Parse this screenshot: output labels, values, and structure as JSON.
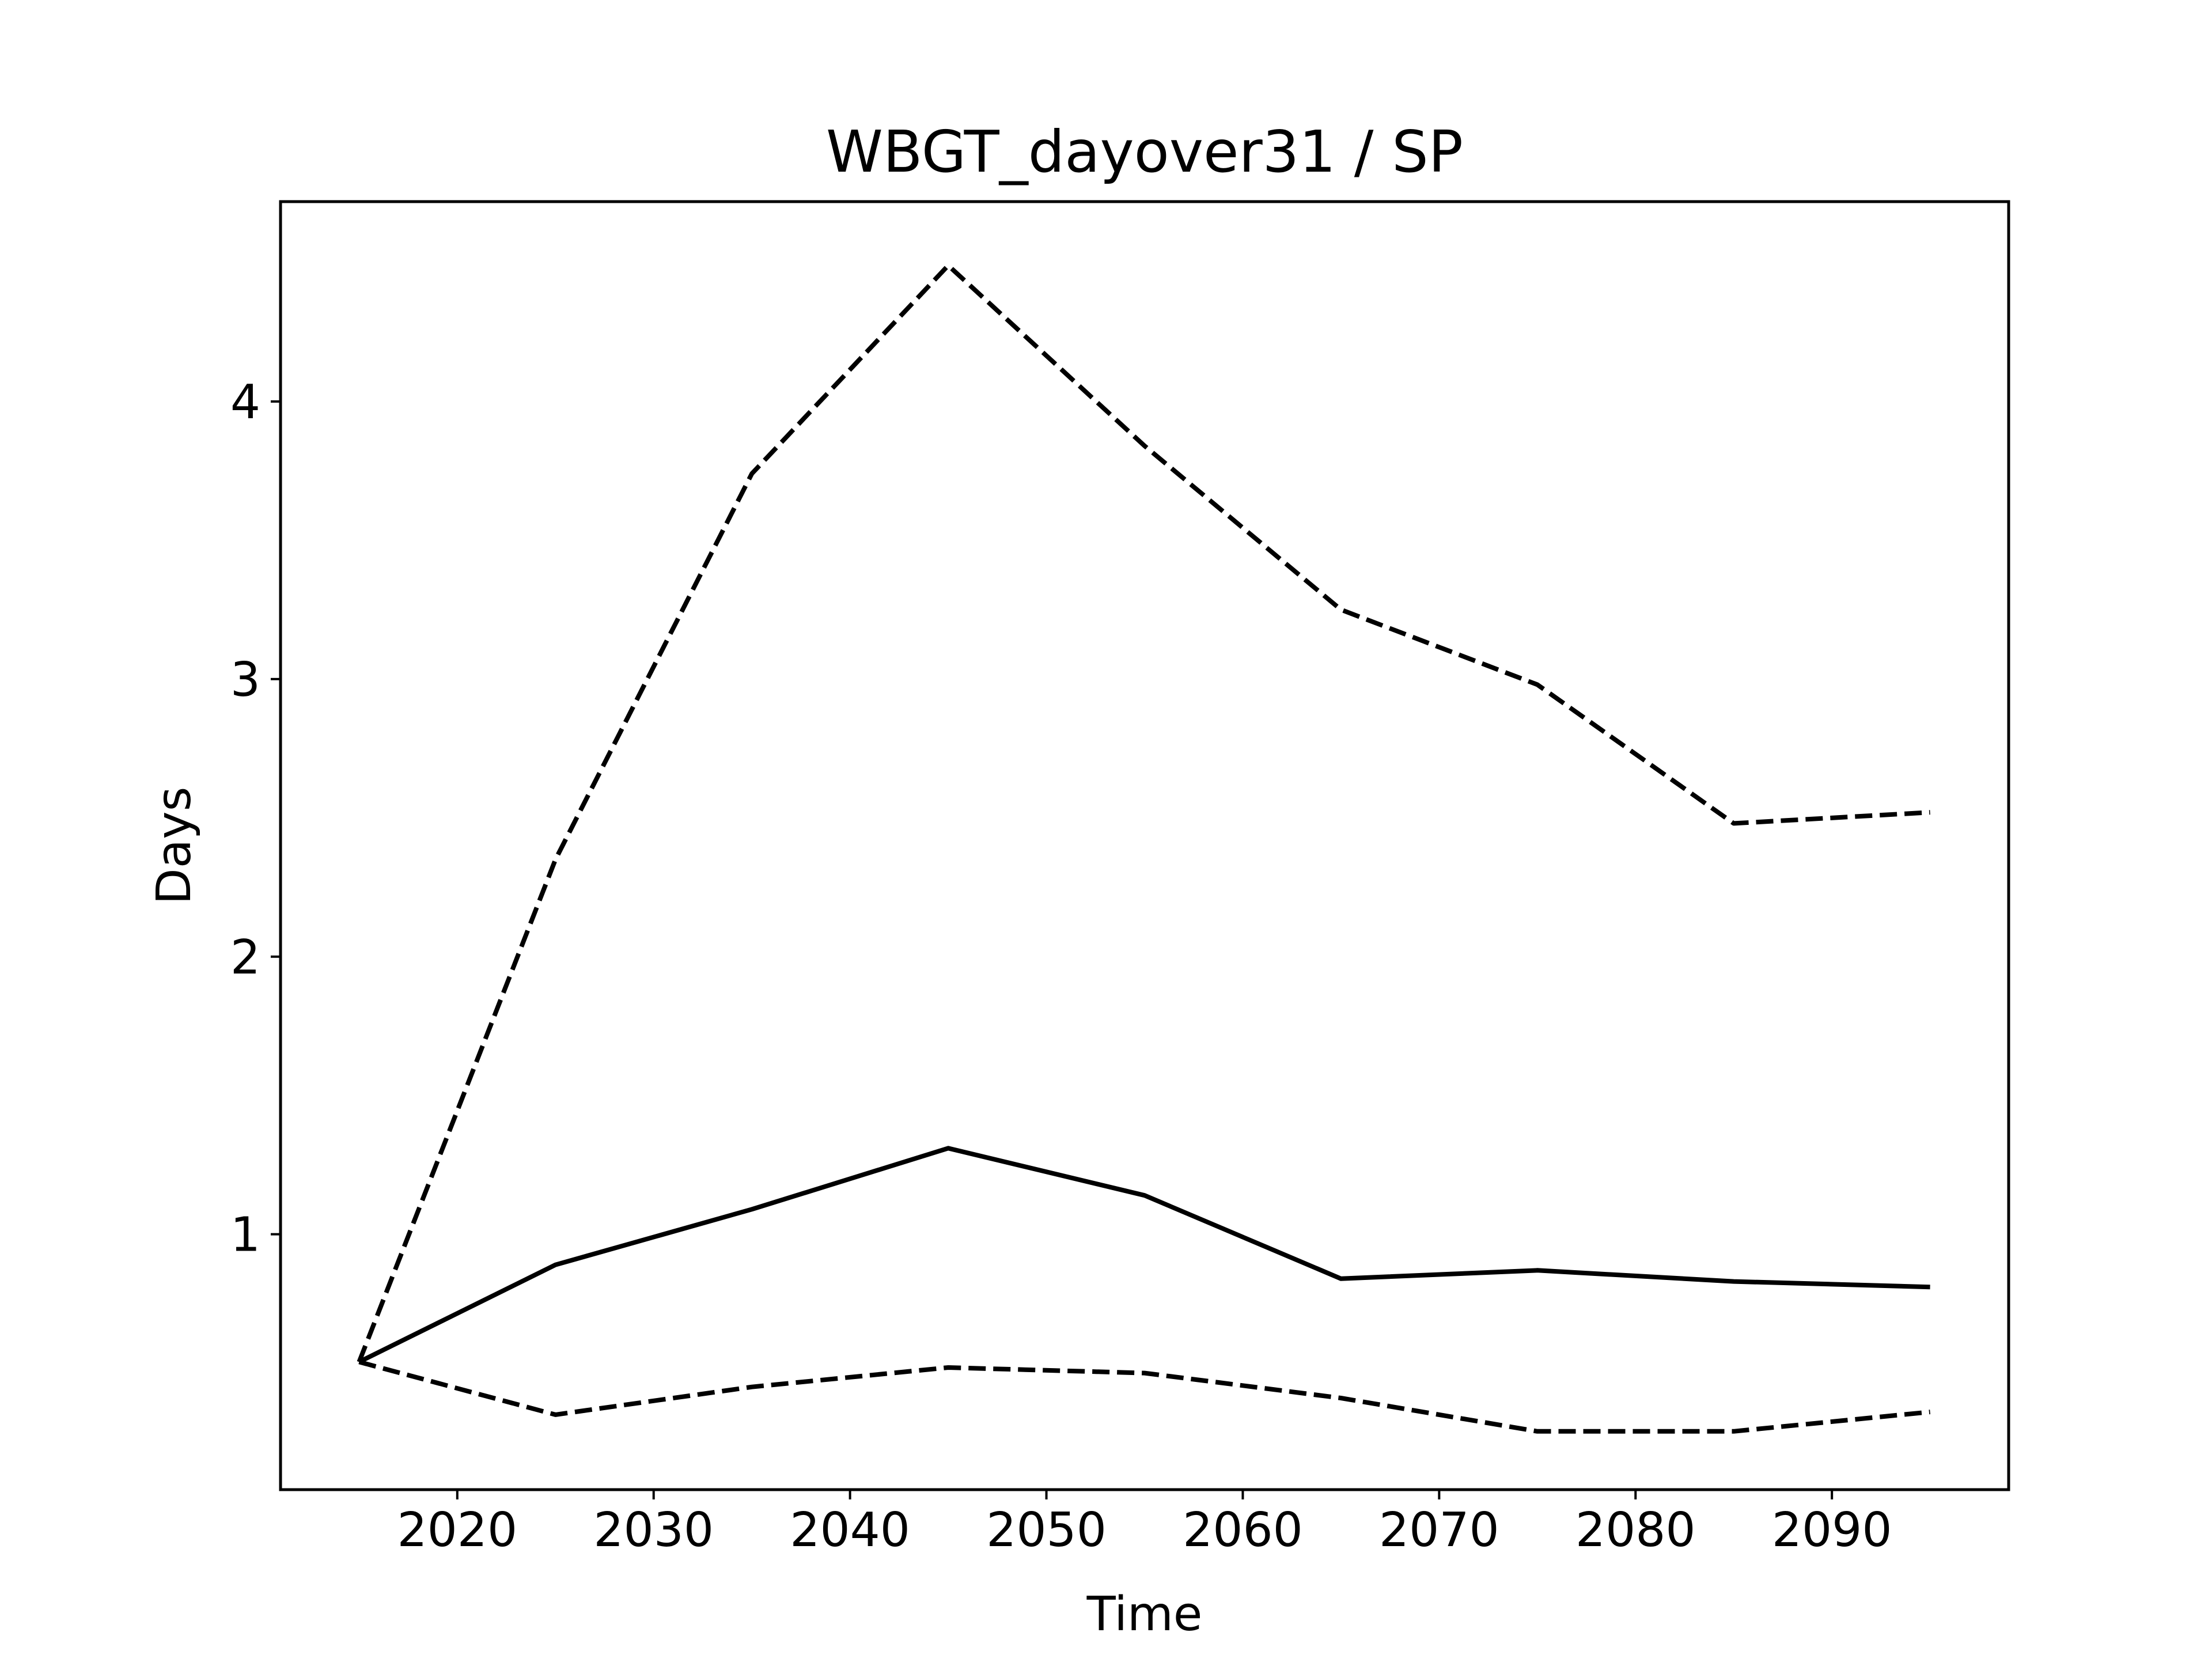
{
  "chart_data": {
    "type": "line",
    "title": "WBGT_dayover31 / SP",
    "xlabel": "Time",
    "ylabel": "Days",
    "xlim": [
      2011,
      2099
    ],
    "ylim": [
      0.08,
      4.72
    ],
    "xticks": [
      2020,
      2030,
      2040,
      2050,
      2060,
      2070,
      2080,
      2090
    ],
    "yticks": [
      1,
      2,
      3,
      4
    ],
    "x": [
      2015,
      2025,
      2035,
      2045,
      2055,
      2065,
      2075,
      2085,
      2095
    ],
    "series": [
      {
        "style": "solid",
        "color": "#000000",
        "values": [
          0.54,
          0.89,
          1.09,
          1.31,
          1.14,
          0.84,
          0.87,
          0.83,
          0.81
        ]
      },
      {
        "style": "dashed",
        "color": "#000000",
        "values": [
          0.54,
          2.35,
          3.74,
          4.49,
          3.84,
          3.25,
          2.98,
          2.48,
          2.52
        ]
      },
      {
        "style": "dashed",
        "color": "#000000",
        "values": [
          0.54,
          0.35,
          0.45,
          0.52,
          0.5,
          0.41,
          0.29,
          0.29,
          0.36
        ]
      }
    ],
    "grid": false,
    "legend": "none"
  }
}
